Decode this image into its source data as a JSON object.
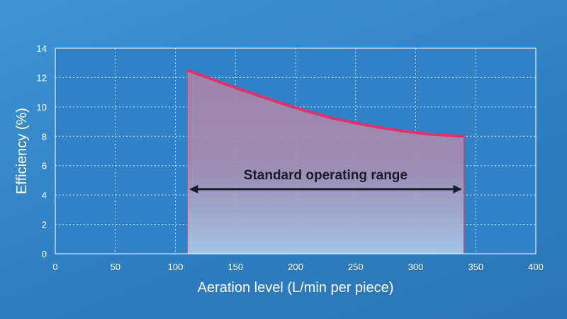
{
  "chart_data": {
    "type": "area",
    "xlabel": "Aeration level (L/min per piece)",
    "ylabel": "Efficiency (%)",
    "xlim": [
      0,
      400
    ],
    "ylim": [
      0,
      14
    ],
    "xticks": [
      0,
      50,
      100,
      150,
      200,
      250,
      300,
      350,
      400
    ],
    "yticks": [
      0,
      2,
      4,
      6,
      8,
      10,
      12,
      14
    ],
    "grid": true,
    "series": [
      {
        "x": [
          110,
          130,
          150,
          170,
          190,
          210,
          230,
          250,
          270,
          290,
          310,
          330,
          340
        ],
        "values": [
          12.5,
          11.9,
          11.3,
          10.75,
          10.2,
          9.7,
          9.25,
          8.9,
          8.6,
          8.35,
          8.15,
          8.05,
          8.0
        ]
      }
    ],
    "annotation": {
      "text": "Standard operating range",
      "x_start": 110,
      "x_end": 340,
      "y": 4.4
    },
    "colors": {
      "line": "#e0336b",
      "fill_top": "#a682a8",
      "fill_bottom": "#a8c8e6",
      "plot_background": "#2f82c8",
      "grid": "#ffffff",
      "arrow": "#1a1a2e"
    }
  }
}
